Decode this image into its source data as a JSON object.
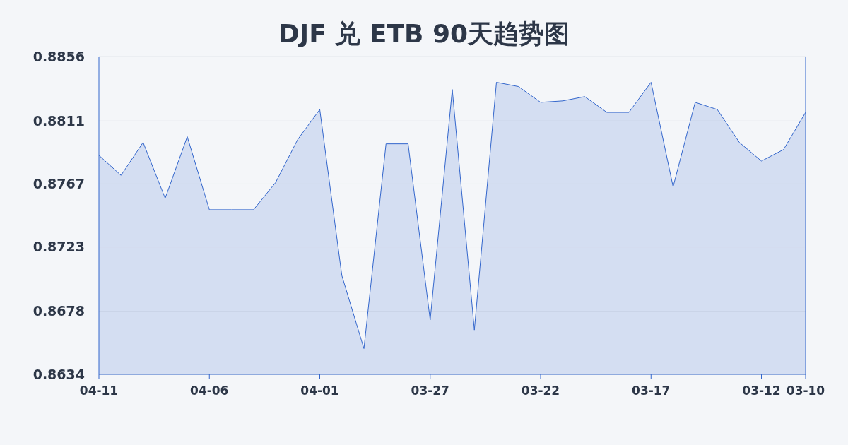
{
  "chart_data": {
    "type": "area",
    "title": "DJF 兑 ETB 90天趋势图",
    "categories": [
      "04-11",
      null,
      null,
      null,
      null,
      "04-06",
      null,
      null,
      null,
      null,
      "04-01",
      null,
      null,
      null,
      null,
      "03-27",
      null,
      null,
      null,
      null,
      "03-22",
      null,
      null,
      null,
      null,
      "03-17",
      null,
      null,
      null,
      null,
      "03-12",
      null,
      "03-10"
    ],
    "series": [
      {
        "color": "#3366cc",
        "values": [
          0.8787,
          0.8773,
          0.8796,
          0.8757,
          0.88,
          0.8749,
          0.8749,
          0.8749,
          0.8768,
          0.8798,
          0.8819,
          0.8703,
          0.8652,
          0.8795,
          0.8795,
          0.8672,
          0.8833,
          0.8665,
          0.8838,
          0.8835,
          0.8824,
          0.8825,
          0.8828,
          0.8817,
          0.8817,
          0.8838,
          0.8765,
          0.8824,
          0.8819,
          0.8796,
          0.8783,
          0.8791,
          0.8817
        ]
      }
    ],
    "ylim": [
      0.8634,
      0.8856
    ],
    "yticks": [
      0.8634,
      0.8678,
      0.8723,
      0.8767,
      0.8811,
      0.8856
    ],
    "grid": "y"
  }
}
